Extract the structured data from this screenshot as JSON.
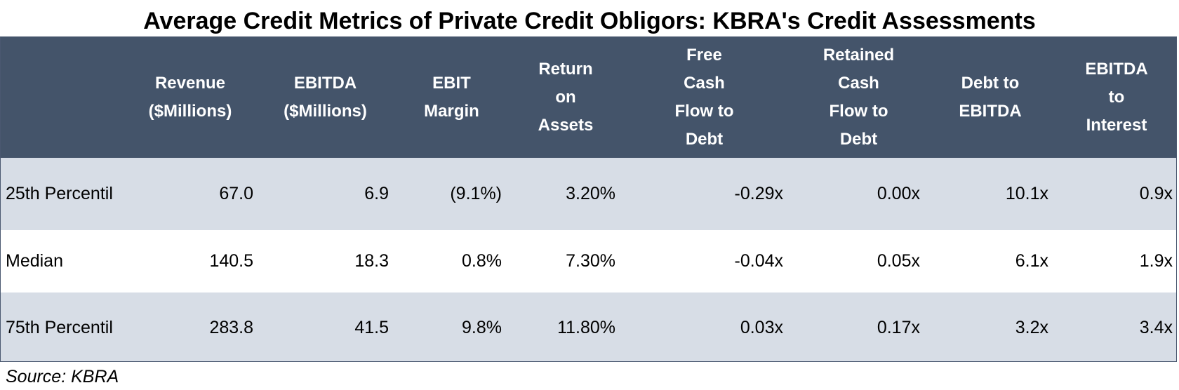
{
  "title": "Average Credit Metrics of Private Credit Obligors: KBRA's Credit Assessments",
  "table": {
    "headers": [
      "",
      "Revenue\n($Millions)",
      "EBITDA\n($Millions)",
      "EBIT\nMargin",
      "Return\non\nAssets",
      "Free\nCash\nFlow to\nDebt",
      "Retained\nCash\nFlow to\nDebt",
      "Debt to\nEBITDA",
      "EBITDA\nto\nInterest"
    ],
    "rows": [
      [
        "25th Percentil",
        "67.0",
        "6.9",
        "(9.1%)",
        "3.20%",
        "-0.29x",
        "0.00x",
        "10.1x",
        "0.9x"
      ],
      [
        "Median",
        "140.5",
        "18.3",
        "0.8%",
        "7.30%",
        "-0.04x",
        "0.05x",
        "6.1x",
        "1.9x"
      ],
      [
        "75th Percentil",
        "283.8",
        "41.5",
        "9.8%",
        "11.80%",
        "0.03x",
        "0.17x",
        "3.2x",
        "3.4x"
      ]
    ]
  },
  "source": "Source: KBRA",
  "colors": {
    "header_bg": "#44546a",
    "header_text": "#ffffff",
    "row_shade": "#d7dde6",
    "row_plain": "#ffffff",
    "border": "#4a5870"
  }
}
